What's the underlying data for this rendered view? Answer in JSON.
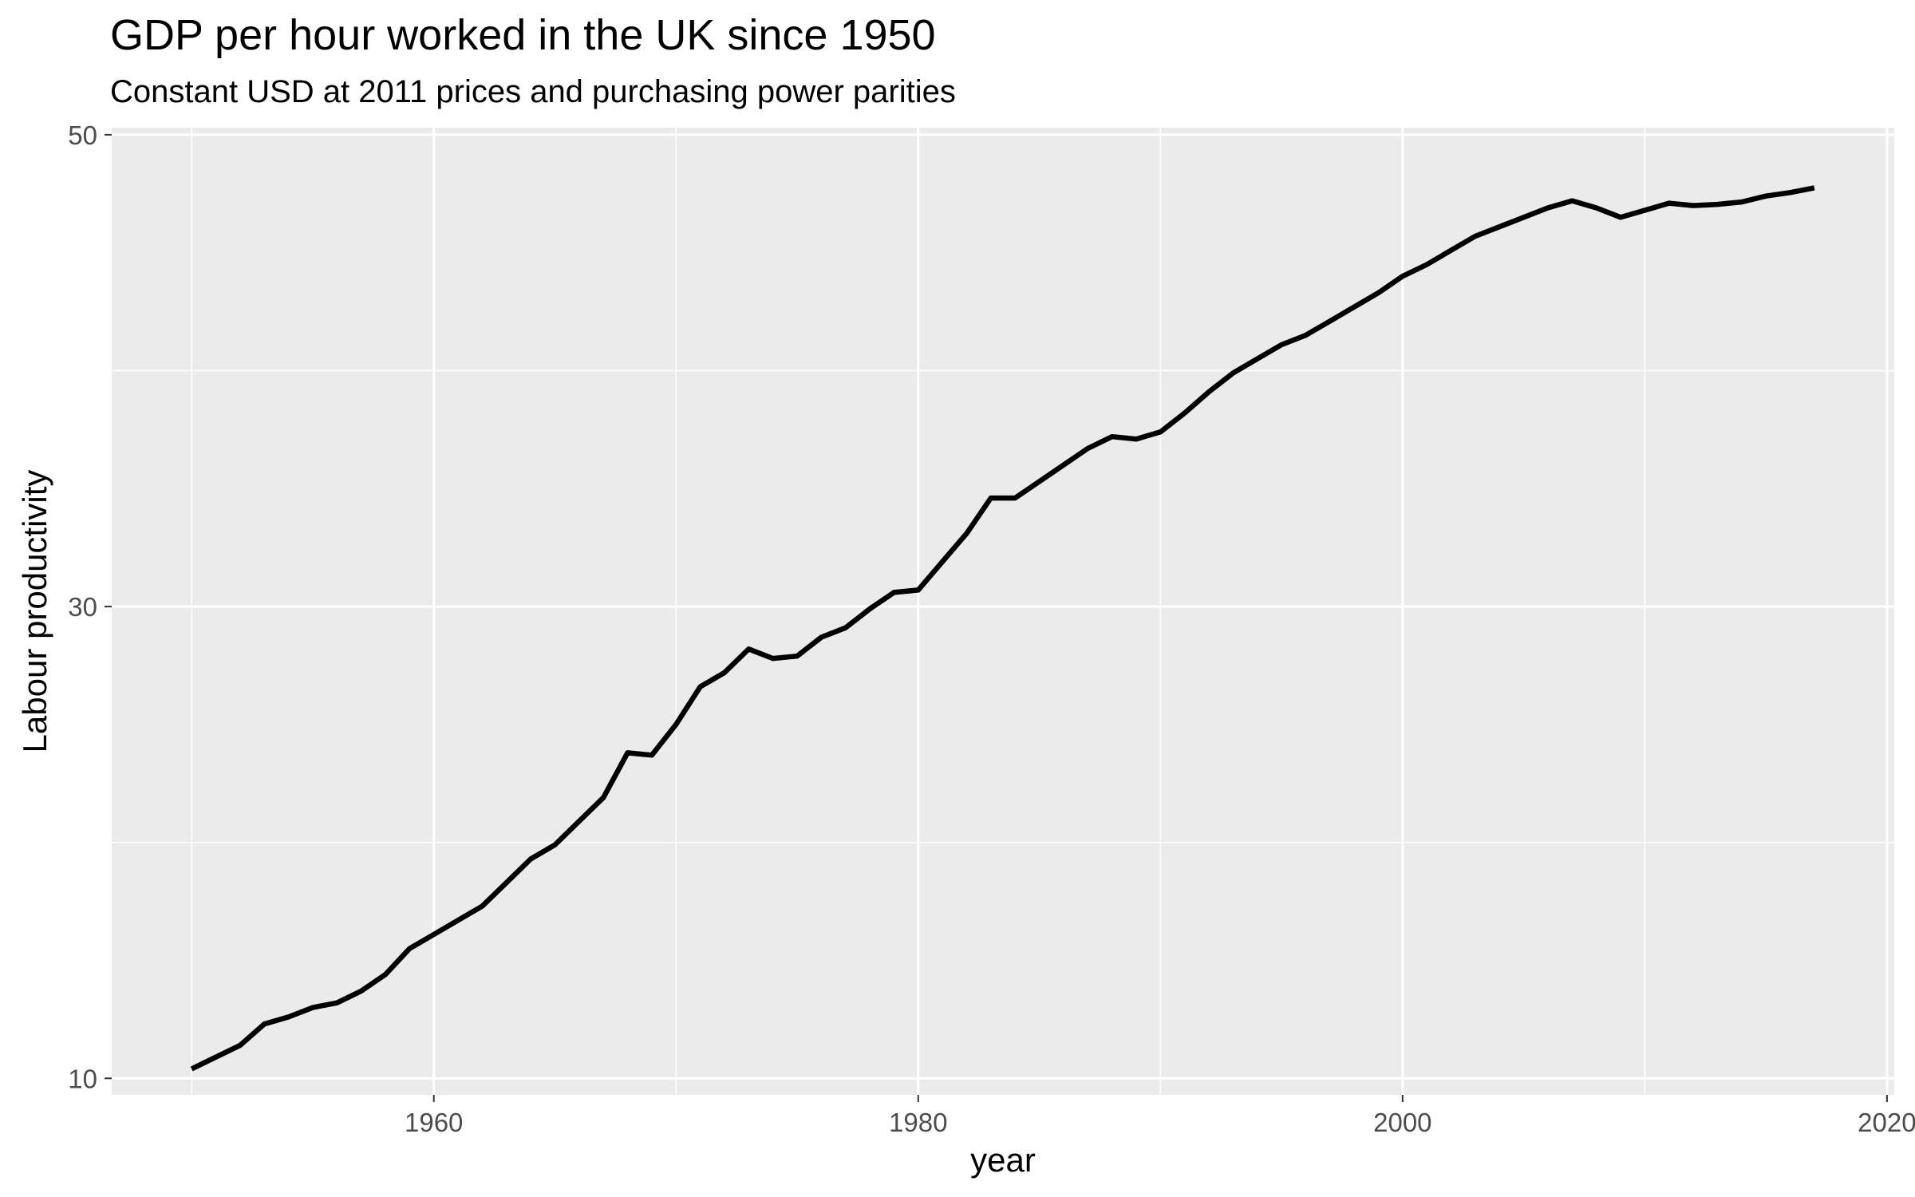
{
  "chart_data": {
    "type": "line",
    "title": "GDP per hour worked in the UK since 1950",
    "subtitle": "Constant USD at 2011 prices and purchasing power parities",
    "xlabel": "year",
    "ylabel": "Labour productivity",
    "xlim": [
      1946.7,
      2020.3
    ],
    "ylim": [
      9.3,
      50.3
    ],
    "x_ticks": [
      1960,
      1980,
      2000,
      2020
    ],
    "x_tick_labels": [
      "1960",
      "1980",
      "2000",
      "2020"
    ],
    "y_ticks": [
      10,
      30,
      50
    ],
    "y_tick_labels": [
      "10",
      "30",
      "50"
    ],
    "x_minor_ticks": [
      1950,
      1970,
      1990,
      2010
    ],
    "y_minor_ticks": [
      20,
      40
    ],
    "grid": true,
    "legend": "none",
    "colors": {
      "panel": "#ebebeb",
      "grid": "#ffffff",
      "line": "#000000",
      "tick": "#333333"
    },
    "series": [
      {
        "x": [
          1950,
          1951,
          1952,
          1953,
          1954,
          1955,
          1956,
          1957,
          1958,
          1959,
          1960,
          1961,
          1962,
          1963,
          1964,
          1965,
          1966,
          1967,
          1968,
          1969,
          1970,
          1971,
          1972,
          1973,
          1974,
          1975,
          1976,
          1977,
          1978,
          1979,
          1980,
          1981,
          1982,
          1983,
          1984,
          1985,
          1986,
          1987,
          1988,
          1989,
          1990,
          1991,
          1992,
          1993,
          1994,
          1995,
          1996,
          1997,
          1998,
          1999,
          2000,
          2001,
          2002,
          2003,
          2004,
          2005,
          2006,
          2007,
          2008,
          2009,
          2010,
          2011,
          2012,
          2013,
          2014,
          2015,
          2016,
          2017
        ],
        "values": [
          10.4,
          10.9,
          11.4,
          12.3,
          12.6,
          13.0,
          13.2,
          13.7,
          14.4,
          15.5,
          16.1,
          16.7,
          17.3,
          18.3,
          19.3,
          19.9,
          20.9,
          21.9,
          23.8,
          23.7,
          25.0,
          26.6,
          27.2,
          28.2,
          27.8,
          27.9,
          28.7,
          29.1,
          29.9,
          30.6,
          30.7,
          31.9,
          33.1,
          34.6,
          34.6,
          35.3,
          36.0,
          36.7,
          37.2,
          37.1,
          37.4,
          38.2,
          39.1,
          39.9,
          40.5,
          41.1,
          41.5,
          42.1,
          42.7,
          43.3,
          44.0,
          44.5,
          45.1,
          45.7,
          46.1,
          46.5,
          46.9,
          47.2,
          46.9,
          46.5,
          46.8,
          47.1,
          47.0,
          47.05,
          47.15,
          47.4,
          47.55,
          47.75
        ]
      }
    ]
  }
}
